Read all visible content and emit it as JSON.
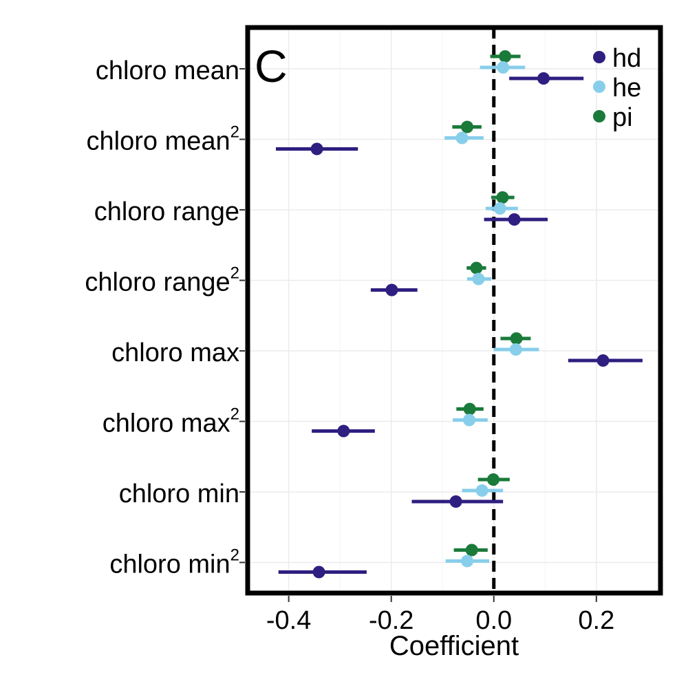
{
  "chart_data": {
    "type": "scatter",
    "subtype": "coefficient-plot",
    "panel_label": "C",
    "xlabel": "Coefficient",
    "xlim": [
      -0.48,
      0.325
    ],
    "x_ticks": [
      "-0.4",
      "-0.2",
      "0.0",
      "0.2"
    ],
    "x_tick_values": [
      -0.4,
      -0.2,
      0.0,
      0.2
    ],
    "reference_line": 0.0,
    "grid": true,
    "legend_position": "top-right",
    "categories": [
      {
        "label": "chloro mean",
        "superscript": ""
      },
      {
        "label": "chloro mean",
        "superscript": "2"
      },
      {
        "label": "chloro range",
        "superscript": ""
      },
      {
        "label": "chloro range",
        "superscript": "2"
      },
      {
        "label": "chloro max",
        "superscript": ""
      },
      {
        "label": "chloro max",
        "superscript": "2"
      },
      {
        "label": "chloro min",
        "superscript": ""
      },
      {
        "label": "chloro min",
        "superscript": "2"
      }
    ],
    "series": [
      {
        "name": "pi",
        "color": "#1a7a3a",
        "values": [
          0.022,
          -0.052,
          0.017,
          -0.034,
          0.044,
          -0.047,
          -0.001,
          -0.043
        ],
        "lower": [
          -0.007,
          -0.081,
          -0.005,
          -0.053,
          0.013,
          -0.073,
          -0.031,
          -0.078
        ],
        "upper": [
          0.052,
          -0.024,
          0.04,
          -0.015,
          0.072,
          -0.02,
          0.031,
          -0.012
        ]
      },
      {
        "name": "he",
        "color": "#87ceeb",
        "values": [
          0.018,
          -0.062,
          0.012,
          -0.03,
          0.043,
          -0.048,
          -0.023,
          -0.052
        ],
        "lower": [
          -0.027,
          -0.096,
          -0.016,
          -0.052,
          0.0,
          -0.08,
          -0.062,
          -0.094
        ],
        "upper": [
          0.061,
          -0.02,
          0.047,
          -0.005,
          0.088,
          -0.012,
          0.018,
          -0.009
        ]
      },
      {
        "name": "hd",
        "color": "#2e1f80",
        "values": [
          0.097,
          -0.345,
          0.04,
          -0.199,
          0.213,
          -0.293,
          -0.074,
          -0.341
        ],
        "lower": [
          0.03,
          -0.425,
          -0.019,
          -0.24,
          0.145,
          -0.355,
          -0.16,
          -0.42
        ],
        "upper": [
          0.175,
          -0.265,
          0.105,
          -0.149,
          0.29,
          -0.232,
          0.018,
          -0.248
        ]
      }
    ],
    "legend": [
      {
        "name": "hd",
        "color": "#2e1f80"
      },
      {
        "name": "he",
        "color": "#87ceeb"
      },
      {
        "name": "pi",
        "color": "#1a7a3a"
      }
    ]
  }
}
